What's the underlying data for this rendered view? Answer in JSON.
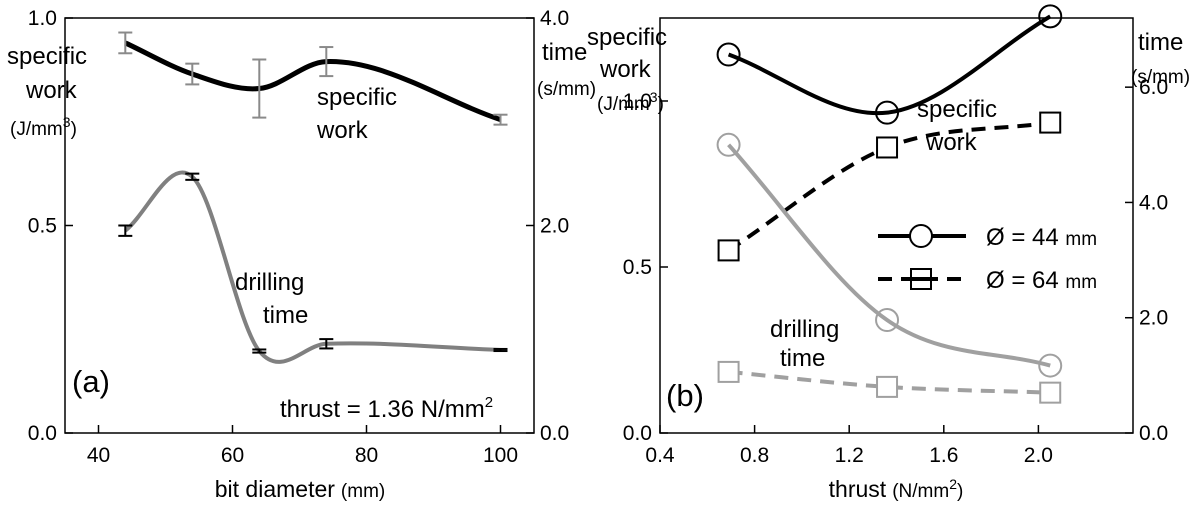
{
  "chart_data": [
    {
      "id": "a",
      "panel_label": "(a)",
      "type": "line",
      "xlabel": "bit diameter",
      "xlabel_unit": "(mm)",
      "ylabel_left": [
        "specific",
        "work"
      ],
      "ylabel_left_unit": "(J/mm",
      "ylabel_left_sup": "3",
      "ylabel_left_close": ")",
      "ylabel_right": "time",
      "ylabel_right_unit": "(s/mm)",
      "xlim": [
        35,
        105
      ],
      "ylim_left": [
        0,
        1
      ],
      "ylim_right": [
        0,
        4
      ],
      "xticks": [
        40,
        60,
        80,
        100
      ],
      "xtick_labels": [
        "40",
        "60",
        "80",
        "100"
      ],
      "yticks_left": [
        0,
        0.5,
        1
      ],
      "ytick_labels_left": [
        "0.0",
        "0.5",
        "1.0"
      ],
      "yticks_right": [
        0,
        2,
        4
      ],
      "ytick_labels_right": [
        "0.0",
        "2.0",
        "4.0"
      ],
      "annotations": {
        "specific_work": [
          "specific",
          "work"
        ],
        "drilling_time": [
          "drilling",
          "time"
        ],
        "thrust_prefix": "thrust = 1.36 N/mm",
        "thrust_sup": "2"
      },
      "series": [
        {
          "name": "specific work",
          "axis": "left",
          "color": "#000000",
          "x": [
            44,
            54,
            64,
            74,
            100
          ],
          "y": [
            0.94,
            0.865,
            0.83,
            0.895,
            0.755
          ],
          "err": [
            0.025,
            0.025,
            0.07,
            0.035,
            0.012
          ]
        },
        {
          "name": "drilling time",
          "axis": "right",
          "color": "#808080",
          "x": [
            44,
            54,
            64,
            74,
            100
          ],
          "y": [
            1.95,
            2.47,
            0.79,
            0.86,
            0.8
          ],
          "err": [
            0.05,
            0.03,
            0.015,
            0.045,
            0.01
          ]
        }
      ]
    },
    {
      "id": "b",
      "panel_label": "(b)",
      "type": "line",
      "xlabel": "thrust",
      "xlabel_unit": "(N/mm",
      "xlabel_sup": "2",
      "xlabel_close": ")",
      "ylabel_left": [
        "specific",
        "work"
      ],
      "ylabel_left_unit": "(J/mm",
      "ylabel_left_sup": "3",
      "ylabel_left_close": ")",
      "ylabel_right": "time",
      "ylabel_right_unit": "(s/mm)",
      "xlim": [
        0.4,
        2.4
      ],
      "ylim_left": [
        0,
        1.25
      ],
      "ylim_right": [
        0,
        7.2
      ],
      "xticks": [
        0.4,
        0.8,
        1.2,
        1.6,
        2.0
      ],
      "xtick_labels": [
        "0.4",
        "0.8",
        "1.2",
        "1.6",
        "2.0"
      ],
      "yticks_left": [
        0,
        0.5,
        1
      ],
      "ytick_labels_left": [
        "0.0",
        "0.5",
        "1.0"
      ],
      "yticks_right": [
        0,
        2,
        4,
        6
      ],
      "ytick_labels_right": [
        "0.0",
        "2.0",
        "4.0",
        "6.0"
      ],
      "annotations": {
        "specific_work": [
          "specific",
          "work"
        ],
        "drilling_time": [
          "drilling",
          "time"
        ]
      },
      "legend": {
        "position": "right-middle",
        "entries": [
          {
            "symbol": "Ø",
            "text": " = 44 ",
            "unit": "mm",
            "marker": "circle",
            "line": "solid"
          },
          {
            "symbol": "Ø",
            "text": " = 64 ",
            "unit": "mm",
            "marker": "square",
            "line": "dashed"
          }
        ]
      },
      "series": [
        {
          "name": "Ø = 44 mm specific work",
          "axis": "left",
          "color": "#000000",
          "marker": "circle",
          "dash": "solid",
          "x": [
            0.69,
            1.36,
            2.05
          ],
          "y": [
            1.14,
            0.965,
            1.255
          ]
        },
        {
          "name": "Ø = 64 mm specific work",
          "axis": "left",
          "color": "#000000",
          "marker": "square",
          "dash": "dashed",
          "x": [
            0.69,
            1.36,
            2.05
          ],
          "y": [
            0.55,
            0.86,
            0.935
          ]
        },
        {
          "name": "Ø = 44 mm drilling time",
          "axis": "right",
          "color": "#a0a0a0",
          "marker": "circle",
          "dash": "solid",
          "x": [
            0.69,
            1.36,
            2.05
          ],
          "y": [
            5.0,
            1.96,
            1.17
          ]
        },
        {
          "name": "Ø = 64 mm drilling time",
          "axis": "right",
          "color": "#a0a0a0",
          "marker": "square",
          "dash": "dashed",
          "x": [
            0.69,
            1.36,
            2.05
          ],
          "y": [
            1.06,
            0.8,
            0.7
          ]
        }
      ]
    }
  ]
}
